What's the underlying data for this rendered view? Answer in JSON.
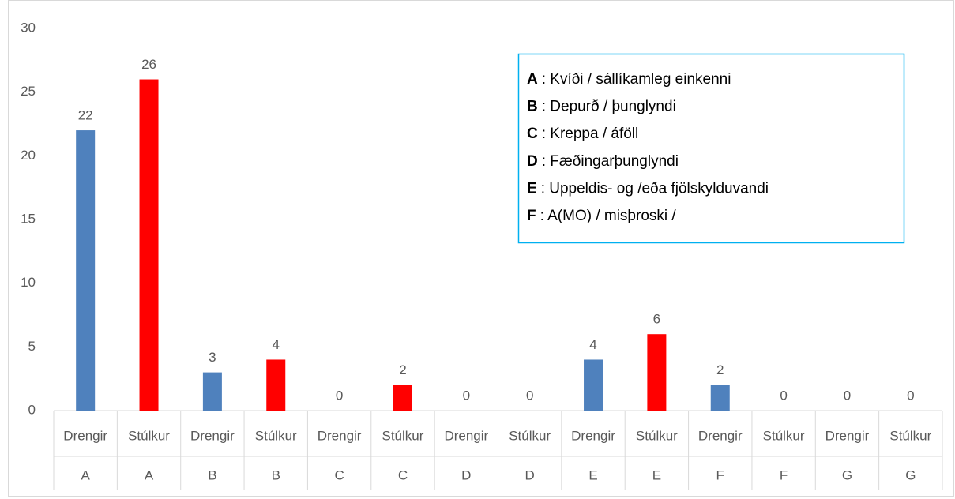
{
  "chart_data": {
    "type": "bar",
    "categories": [
      "Drengir",
      "Stúlkur",
      "Drengir",
      "Stúlkur",
      "Drengir",
      "Stúlkur",
      "Drengir",
      "Stúlkur",
      "Drengir",
      "Stúlkur",
      "Drengir",
      "Stúlkur",
      "Drengir",
      "Stúlkur"
    ],
    "groups": [
      "A",
      "A",
      "B",
      "B",
      "C",
      "C",
      "D",
      "D",
      "E",
      "E",
      "F",
      "F",
      "G",
      "G"
    ],
    "values": [
      22,
      26,
      3,
      4,
      0,
      2,
      0,
      0,
      4,
      6,
      2,
      0,
      0,
      0
    ],
    "colors": [
      "#4f81bd",
      "#ff0000",
      "#4f81bd",
      "#ff0000",
      "#4f81bd",
      "#ff0000",
      "#4f81bd",
      "#ff0000",
      "#4f81bd",
      "#ff0000",
      "#4f81bd",
      "#ff0000",
      "#4f81bd",
      "#ff0000"
    ],
    "ylim": [
      0,
      30
    ],
    "yticks": [
      0,
      5,
      10,
      15,
      20,
      25,
      30
    ],
    "grid": false,
    "annotations": [
      {
        "key": "A",
        "text": ": Kvíði / sállíkamleg einkenni"
      },
      {
        "key": "B",
        "text": ": Depurð / þunglyndi"
      },
      {
        "key": "C",
        "text": ": Kreppa / áföll"
      },
      {
        "key": "D",
        "text": ":  Fæðingarþunglyndi"
      },
      {
        "key": "E",
        "text": ": Uppeldis- og /eða fjölskylduvandi"
      },
      {
        "key": "F",
        "text": ": A(MO) / misþroski /"
      }
    ]
  }
}
